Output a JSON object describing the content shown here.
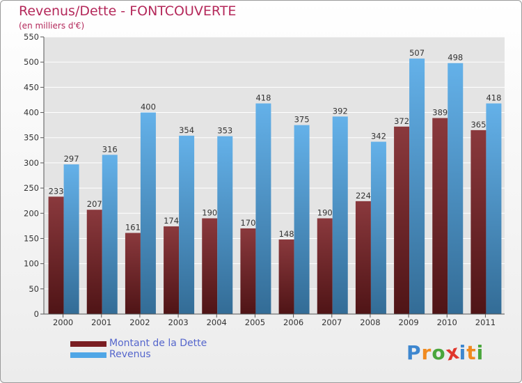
{
  "chart_data": {
    "type": "bar",
    "title": "Revenus/Dette - FONTCOUVERTE",
    "subtitle": "(en milliers d'€)",
    "categories": [
      "2000",
      "2001",
      "2002",
      "2003",
      "2004",
      "2005",
      "2006",
      "2007",
      "2008",
      "2009",
      "2010",
      "2011"
    ],
    "series": [
      {
        "name": "Montant de la Dette",
        "color": "#7a1e22",
        "values": [
          233,
          207,
          161,
          174,
          190,
          170,
          148,
          190,
          224,
          372,
          389,
          365
        ]
      },
      {
        "name": "Revenus",
        "color": "#4fa6e6",
        "values": [
          297,
          316,
          400,
          354,
          353,
          418,
          375,
          392,
          342,
          507,
          498,
          418
        ]
      }
    ],
    "ylim": [
      0,
      550
    ],
    "yticks": [
      0,
      50,
      100,
      150,
      200,
      250,
      300,
      350,
      400,
      450,
      500,
      550
    ],
    "grid": true,
    "legend_position": "bottom-left"
  },
  "watermark": {
    "letters": [
      "P",
      "r",
      "o",
      "x",
      "i",
      "t",
      "i"
    ],
    "colors": [
      "#3e87cf",
      "#f08a1f",
      "#4aa63c",
      "#e0362c",
      "#3e87cf",
      "#f08a1f",
      "#4aa63c"
    ]
  }
}
